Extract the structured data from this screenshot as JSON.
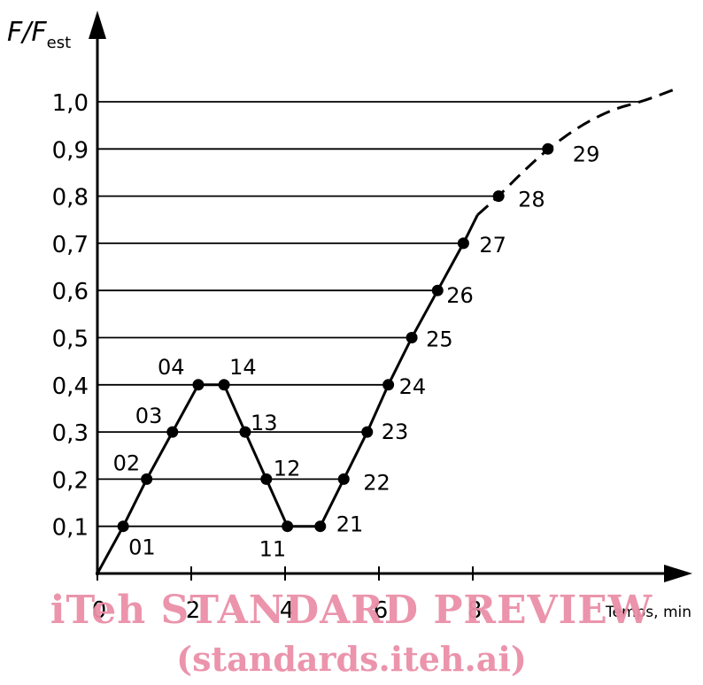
{
  "chart_data": {
    "type": "line",
    "ylabel_main": "F/F",
    "ylabel_sub": "est",
    "xlabel": "Temps, min",
    "xlim": [
      0,
      12.5
    ],
    "ylim": [
      0,
      1.0
    ],
    "x_ticks": [
      {
        "v": 0,
        "label": "0"
      },
      {
        "v": 2,
        "label": "2"
      },
      {
        "v": 4,
        "label": "4"
      },
      {
        "v": 6,
        "label": "6"
      },
      {
        "v": 8,
        "label": "8"
      }
    ],
    "y_ticks": [
      {
        "v": 0.1,
        "label": "0,1"
      },
      {
        "v": 0.2,
        "label": "0,2"
      },
      {
        "v": 0.3,
        "label": "0,3"
      },
      {
        "v": 0.4,
        "label": "0,4"
      },
      {
        "v": 0.5,
        "label": "0,5"
      },
      {
        "v": 0.6,
        "label": "0,6"
      },
      {
        "v": 0.7,
        "label": "0,7"
      },
      {
        "v": 0.8,
        "label": "0,8"
      },
      {
        "v": 0.9,
        "label": "0,9"
      },
      {
        "v": 1.0,
        "label": "1,0"
      }
    ],
    "gridlines": [
      {
        "y": 0.1,
        "x_end": 4.6
      },
      {
        "y": 0.2,
        "x_end": 5.2
      },
      {
        "y": 0.3,
        "x_end": 5.75
      },
      {
        "y": 0.4,
        "x_end": 6.3
      },
      {
        "y": 0.5,
        "x_end": 6.8
      },
      {
        "y": 0.6,
        "x_end": 7.3
      },
      {
        "y": 0.7,
        "x_end": 7.9
      },
      {
        "y": 0.8,
        "x_end": 8.5
      },
      {
        "y": 0.9,
        "x_end": 9.7
      },
      {
        "y": 1.0,
        "x_end": 11.6
      }
    ],
    "solid_path": [
      [
        0,
        0
      ],
      [
        0.55,
        0.1
      ],
      [
        1.05,
        0.2
      ],
      [
        1.6,
        0.3
      ],
      [
        2.15,
        0.4
      ],
      [
        2.7,
        0.4
      ],
      [
        3.15,
        0.3
      ],
      [
        3.6,
        0.2
      ],
      [
        4.05,
        0.1
      ],
      [
        4.75,
        0.1
      ],
      [
        5.25,
        0.2
      ],
      [
        5.75,
        0.3
      ],
      [
        6.2,
        0.4
      ],
      [
        6.7,
        0.5
      ],
      [
        7.25,
        0.6
      ],
      [
        7.8,
        0.7
      ],
      [
        8.1,
        0.76
      ]
    ],
    "dashed_path": [
      [
        8.1,
        0.76
      ],
      [
        8.55,
        0.8
      ],
      [
        9.05,
        0.85
      ],
      [
        9.6,
        0.9
      ],
      [
        10.3,
        0.95
      ],
      [
        11.0,
        0.985
      ],
      [
        11.6,
        1.0
      ],
      [
        12.4,
        1.03
      ]
    ],
    "points": [
      {
        "label": "01",
        "x": 0.55,
        "y": 0.1
      },
      {
        "label": "02",
        "x": 1.05,
        "y": 0.2
      },
      {
        "label": "03",
        "x": 1.6,
        "y": 0.3
      },
      {
        "label": "04",
        "x": 2.15,
        "y": 0.4
      },
      {
        "label": "14",
        "x": 2.7,
        "y": 0.4
      },
      {
        "label": "13",
        "x": 3.15,
        "y": 0.3
      },
      {
        "label": "12",
        "x": 3.6,
        "y": 0.2
      },
      {
        "label": "11",
        "x": 4.05,
        "y": 0.1
      },
      {
        "label": "21",
        "x": 4.75,
        "y": 0.1
      },
      {
        "label": "22",
        "x": 5.25,
        "y": 0.2
      },
      {
        "label": "23",
        "x": 5.75,
        "y": 0.3
      },
      {
        "label": "24",
        "x": 6.2,
        "y": 0.4
      },
      {
        "label": "25",
        "x": 6.7,
        "y": 0.5
      },
      {
        "label": "26",
        "x": 7.25,
        "y": 0.6
      },
      {
        "label": "27",
        "x": 7.8,
        "y": 0.7
      },
      {
        "label": "28",
        "x": 8.55,
        "y": 0.8
      },
      {
        "label": "29",
        "x": 9.6,
        "y": 0.9
      }
    ]
  },
  "watermark": {
    "line1": "iTeh STANDARD PREVIEW",
    "line2": "(standards.iteh.ai)"
  }
}
